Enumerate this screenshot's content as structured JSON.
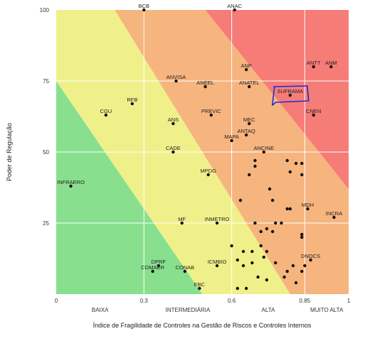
{
  "chart_data": {
    "type": "scatter",
    "xlabel": "Índice de Fragilidade de Controles na Gestão de Riscos e Controles Internos",
    "ylabel": "Poder de Regulação",
    "xlim": [
      0,
      1
    ],
    "ylim": [
      0,
      100
    ],
    "x_ticks": [
      "0",
      "0.3",
      "0.6",
      "0.85",
      "1"
    ],
    "x_tick_values": [
      0,
      0.3,
      0.6,
      0.85,
      1
    ],
    "y_ticks": [
      "25",
      "50",
      "75",
      "100"
    ],
    "y_tick_values": [
      25,
      50,
      75,
      100
    ],
    "categories": [
      "BAIXA",
      "INTERMEDIÁRIA",
      "ALTA",
      "MUITO ALTA"
    ],
    "category_centers": [
      0.15,
      0.45,
      0.725,
      0.925
    ],
    "zones": [
      {
        "name": "baixa",
        "color": "#88e08e"
      },
      {
        "name": "intermediaria",
        "color": "#f0f08a"
      },
      {
        "name": "alta",
        "color": "#f6b47e"
      },
      {
        "name": "muito-alta",
        "color": "#f67c78"
      }
    ],
    "grid": true,
    "labeled_points": [
      {
        "label": "BCB",
        "x": 0.3,
        "y": 100
      },
      {
        "label": "ANAC",
        "x": 0.61,
        "y": 100
      },
      {
        "label": "ANP",
        "x": 0.65,
        "y": 79
      },
      {
        "label": "ANTT",
        "x": 0.88,
        "y": 80
      },
      {
        "label": "ANM",
        "x": 0.94,
        "y": 80
      },
      {
        "label": "ANVISA",
        "x": 0.41,
        "y": 75
      },
      {
        "label": "ANEEL",
        "x": 0.51,
        "y": 73
      },
      {
        "label": "ANATEL",
        "x": 0.66,
        "y": 73
      },
      {
        "label": "SUFRAMA",
        "x": 0.8,
        "y": 70
      },
      {
        "label": "RFB",
        "x": 0.26,
        "y": 67
      },
      {
        "label": "CGU",
        "x": 0.17,
        "y": 63
      },
      {
        "label": "PREVIC",
        "x": 0.53,
        "y": 63
      },
      {
        "label": "CNEN",
        "x": 0.88,
        "y": 63
      },
      {
        "label": "ANS",
        "x": 0.4,
        "y": 60
      },
      {
        "label": "MEC",
        "x": 0.66,
        "y": 60
      },
      {
        "label": "ANTAQ",
        "x": 0.65,
        "y": 56
      },
      {
        "label": "MAPA",
        "x": 0.6,
        "y": 54
      },
      {
        "label": "CADE",
        "x": 0.4,
        "y": 50
      },
      {
        "label": "ANCINE",
        "x": 0.71,
        "y": 50
      },
      {
        "label": "MPDG",
        "x": 0.52,
        "y": 42
      },
      {
        "label": "INFRAERO",
        "x": 0.05,
        "y": 38
      },
      {
        "label": "MDH",
        "x": 0.86,
        "y": 30
      },
      {
        "label": "INCRA",
        "x": 0.95,
        "y": 27
      },
      {
        "label": "MF",
        "x": 0.43,
        "y": 25
      },
      {
        "label": "INMETRO",
        "x": 0.55,
        "y": 25
      },
      {
        "label": "DNOCS",
        "x": 0.87,
        "y": 12
      },
      {
        "label": "ICMBIO",
        "x": 0.55,
        "y": 10
      },
      {
        "label": "DPRF",
        "x": 0.35,
        "y": 10
      },
      {
        "label": "COMAER",
        "x": 0.33,
        "y": 8
      },
      {
        "label": "CONAB",
        "x": 0.44,
        "y": 8
      },
      {
        "label": "EBC",
        "x": 0.49,
        "y": 2
      }
    ],
    "unlabeled_points": [
      {
        "x": 0.68,
        "y": 47
      },
      {
        "x": 0.68,
        "y": 45
      },
      {
        "x": 0.66,
        "y": 42
      },
      {
        "x": 0.79,
        "y": 47
      },
      {
        "x": 0.82,
        "y": 46
      },
      {
        "x": 0.84,
        "y": 46
      },
      {
        "x": 0.8,
        "y": 43
      },
      {
        "x": 0.84,
        "y": 42
      },
      {
        "x": 0.73,
        "y": 37
      },
      {
        "x": 0.63,
        "y": 33
      },
      {
        "x": 0.74,
        "y": 33
      },
      {
        "x": 0.8,
        "y": 30
      },
      {
        "x": 0.79,
        "y": 30
      },
      {
        "x": 0.68,
        "y": 25
      },
      {
        "x": 0.75,
        "y": 25
      },
      {
        "x": 0.77,
        "y": 25
      },
      {
        "x": 0.72,
        "y": 23
      },
      {
        "x": 0.7,
        "y": 22
      },
      {
        "x": 0.74,
        "y": 22
      },
      {
        "x": 0.84,
        "y": 21
      },
      {
        "x": 0.84,
        "y": 20
      },
      {
        "x": 0.6,
        "y": 17
      },
      {
        "x": 0.7,
        "y": 17
      },
      {
        "x": 0.64,
        "y": 15
      },
      {
        "x": 0.67,
        "y": 15
      },
      {
        "x": 0.72,
        "y": 15
      },
      {
        "x": 0.62,
        "y": 12
      },
      {
        "x": 0.71,
        "y": 13
      },
      {
        "x": 0.67,
        "y": 11
      },
      {
        "x": 0.75,
        "y": 11
      },
      {
        "x": 0.64,
        "y": 10
      },
      {
        "x": 0.81,
        "y": 10
      },
      {
        "x": 0.85,
        "y": 10
      },
      {
        "x": 0.79,
        "y": 8
      },
      {
        "x": 0.84,
        "y": 8
      },
      {
        "x": 0.69,
        "y": 6
      },
      {
        "x": 0.78,
        "y": 6
      },
      {
        "x": 0.72,
        "y": 5
      },
      {
        "x": 0.62,
        "y": 2
      },
      {
        "x": 0.65,
        "y": 2
      },
      {
        "x": 0.82,
        "y": 4
      }
    ],
    "annotation": {
      "type": "highlight-box",
      "target": "SUFRAMA",
      "color": "#1f2bd6"
    }
  }
}
